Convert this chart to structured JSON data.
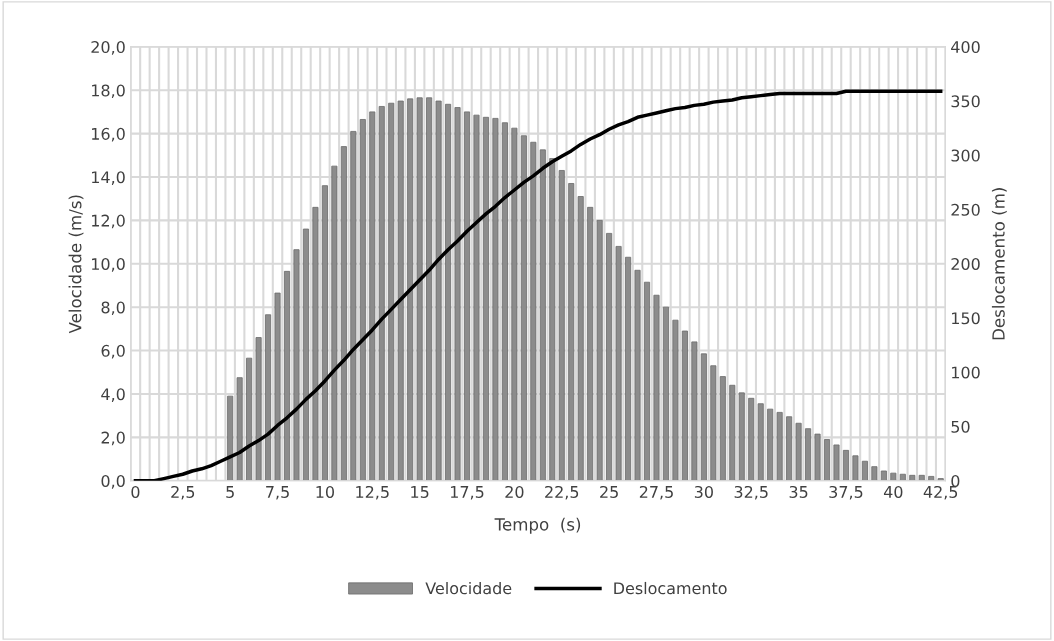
{
  "chart_data": {
    "type": "bar",
    "xlabel": "Tempo  (s)",
    "ylabel": "Velocidade (m/s)",
    "y2label": "Deslocamento (m)",
    "categories": [
      "0",
      null,
      null,
      null,
      null,
      "2,5",
      null,
      null,
      null,
      null,
      "5",
      null,
      null,
      null,
      null,
      "7,5",
      null,
      null,
      null,
      null,
      "10",
      null,
      null,
      null,
      null,
      "12,5",
      null,
      null,
      null,
      null,
      "15",
      null,
      null,
      null,
      null,
      "17,5",
      null,
      null,
      null,
      null,
      "20",
      null,
      null,
      null,
      null,
      "22,5",
      null,
      null,
      null,
      null,
      "25",
      null,
      null,
      null,
      null,
      "27,5",
      null,
      null,
      null,
      null,
      "30",
      null,
      null,
      null,
      null,
      "32,5",
      null,
      null,
      null,
      null,
      "35",
      null,
      null,
      null,
      null,
      "37,5",
      null,
      null,
      null,
      null,
      "40",
      null,
      null,
      null,
      null,
      "42,5"
    ],
    "series": [
      {
        "name": "Velocidade",
        "color": "#8c8c8c",
        "values": [
          null,
          null,
          null,
          null,
          null,
          null,
          null,
          null,
          null,
          null,
          3.9,
          4.75,
          5.65,
          6.6,
          7.65,
          8.65,
          9.65,
          10.65,
          11.6,
          12.6,
          13.6,
          14.5,
          15.4,
          16.1,
          16.65,
          17.0,
          17.25,
          17.4,
          17.5,
          17.6,
          17.65,
          17.65,
          17.5,
          17.35,
          17.2,
          17.0,
          16.85,
          16.75,
          16.7,
          16.5,
          16.25,
          15.9,
          15.6,
          15.25,
          14.85,
          14.3,
          13.7,
          13.1,
          12.6,
          12.0,
          11.4,
          10.8,
          10.3,
          9.7,
          9.15,
          8.55,
          8.0,
          7.4,
          6.9,
          6.4,
          5.85,
          5.3,
          4.8,
          4.4,
          4.05,
          3.8,
          3.55,
          3.3,
          3.15,
          2.95,
          2.65,
          2.4,
          2.15,
          1.9,
          1.65,
          1.4,
          1.15,
          0.9,
          0.65,
          0.45,
          0.35,
          0.3,
          0.25,
          0.25,
          0.2,
          0.1
        ]
      },
      {
        "name": "Deslocamento",
        "type": "line",
        "axis": "y2",
        "color": "#000000",
        "values": [
          0,
          0,
          0,
          2,
          4,
          6,
          9,
          11,
          14,
          18,
          22,
          26,
          32,
          37,
          43,
          51,
          58,
          66,
          75,
          83,
          92,
          102,
          111,
          121,
          130,
          139,
          149,
          158,
          167,
          176,
          185,
          194,
          204,
          213,
          221,
          230,
          238,
          246,
          253,
          261,
          268,
          275,
          281,
          288,
          294,
          299,
          304,
          310,
          315,
          319,
          324,
          328,
          331,
          335,
          337,
          339,
          341,
          343,
          344,
          346,
          347,
          349,
          350,
          351,
          353,
          354,
          355,
          356,
          357,
          357,
          357,
          357,
          357,
          357,
          357,
          359,
          359,
          359,
          359,
          359,
          359,
          359,
          359,
          359,
          359,
          359
        ]
      }
    ],
    "ylim": [
      0,
      20
    ],
    "yticks": [
      {
        "value": 0,
        "label": "0,0"
      },
      {
        "value": 2,
        "label": "2,0"
      },
      {
        "value": 4,
        "label": "4,0"
      },
      {
        "value": 6,
        "label": "6,0"
      },
      {
        "value": 8,
        "label": "8,0"
      },
      {
        "value": 10,
        "label": "10,0"
      },
      {
        "value": 12,
        "label": "12,0"
      },
      {
        "value": 14,
        "label": "14,0"
      },
      {
        "value": 16,
        "label": "16,0"
      },
      {
        "value": 18,
        "label": "18,0"
      },
      {
        "value": 20,
        "label": "20,0"
      }
    ],
    "y2lim": [
      0,
      400
    ],
    "y2ticks": [
      0,
      50,
      100,
      150,
      200,
      250,
      300,
      350,
      400
    ],
    "grid": true,
    "legend": "bottom",
    "line_style": "solid",
    "marker": "none"
  }
}
